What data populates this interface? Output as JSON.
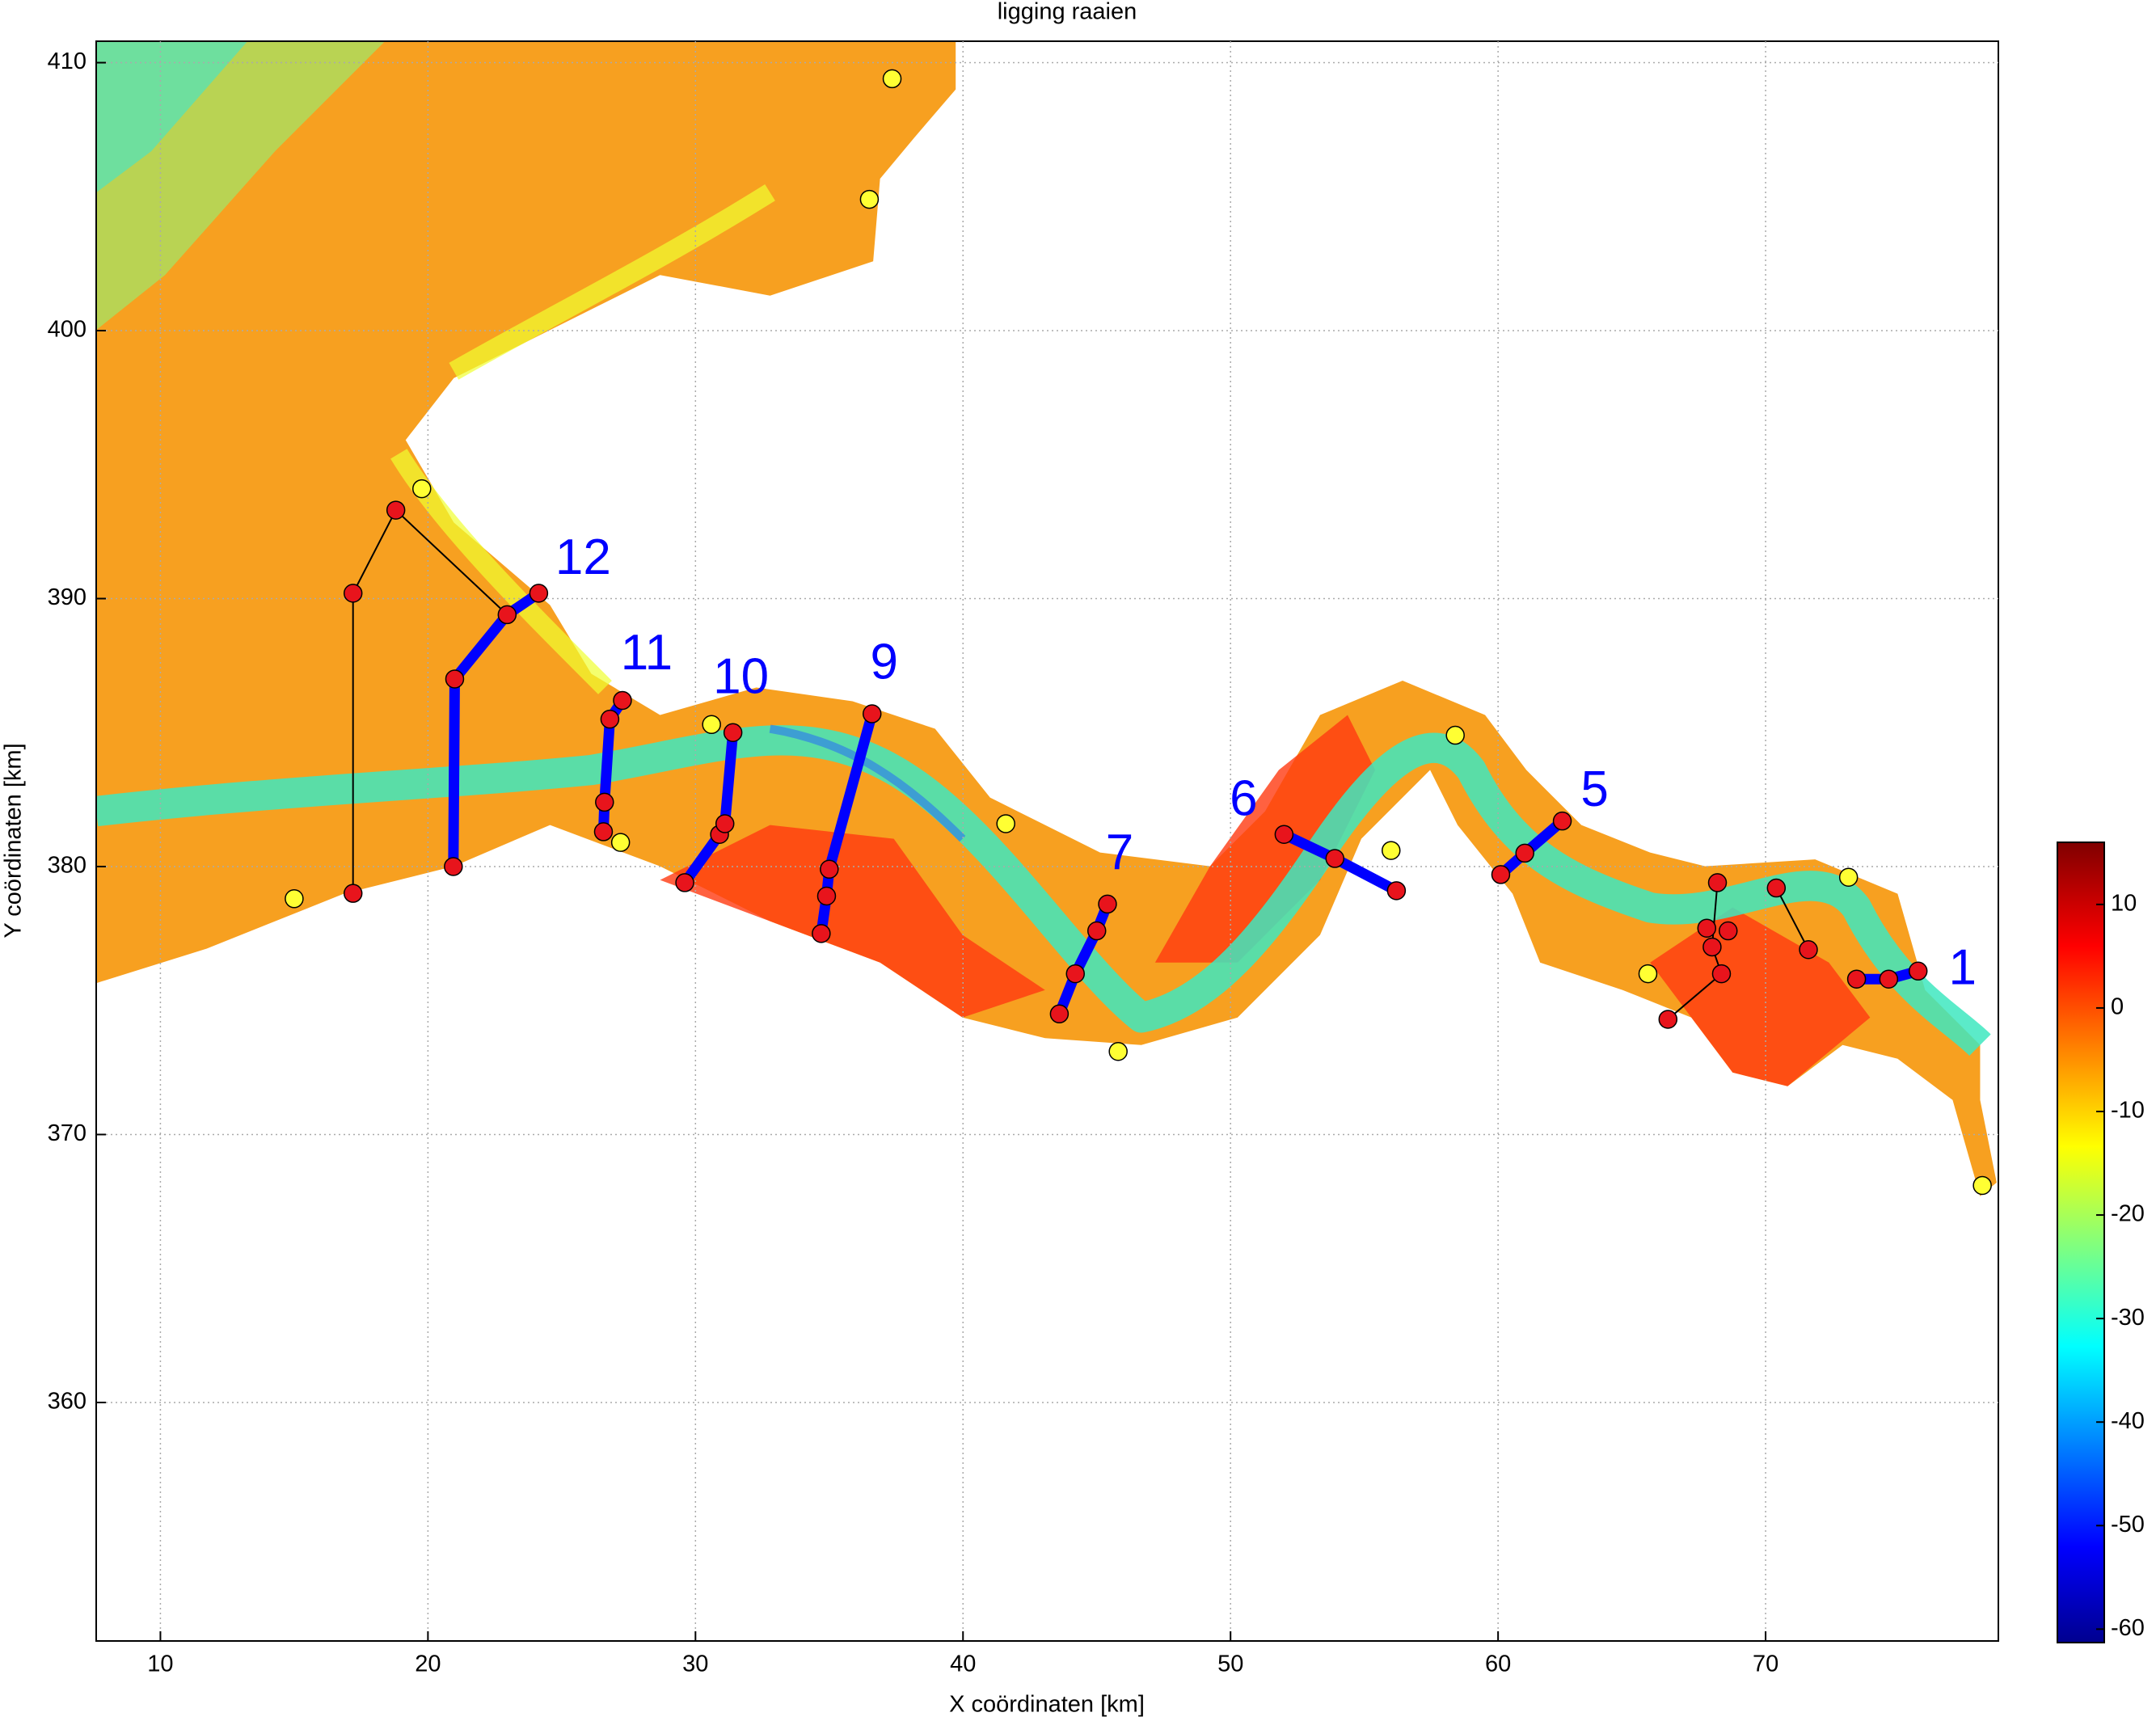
{
  "chart_data": {
    "type": "scatter",
    "title": "ligging raaien",
    "x_label": "X coördinaten [km]",
    "y_label": "Y coördinaten [km]",
    "xlim": [
      7.6,
      78.7
    ],
    "ylim": [
      351.1,
      410.8
    ],
    "xticks": [
      10,
      20,
      30,
      40,
      50,
      60,
      70
    ],
    "yticks": [
      360,
      370,
      380,
      390,
      400,
      410
    ],
    "grid": true,
    "series": [
      {
        "name": "12",
        "color": "#0000ff",
        "x": [
          20.95,
          21.0,
          22.96,
          24.14
        ],
        "y": [
          380.0,
          387.0,
          389.4,
          390.2
        ]
      },
      {
        "name": "11",
        "color": "#0000ff",
        "x": [
          26.56,
          26.6,
          26.8,
          27.27
        ],
        "y": [
          381.3,
          382.4,
          385.5,
          386.2
        ]
      },
      {
        "name": "10",
        "color": "#0000ff",
        "x": [
          29.6,
          30.9,
          31.1,
          31.4
        ],
        "y": [
          379.4,
          381.2,
          381.6,
          385.0
        ]
      },
      {
        "name": "9",
        "color": "#0000ff",
        "x": [
          34.7,
          34.9,
          35.0,
          36.6
        ],
        "y": [
          377.5,
          378.9,
          379.9,
          385.7
        ]
      },
      {
        "name": "7",
        "color": "#0000ff",
        "x": [
          43.6,
          44.2,
          45.0,
          45.4
        ],
        "y": [
          374.5,
          376.0,
          377.6,
          378.6
        ]
      },
      {
        "name": "6",
        "color": "#0000ff",
        "x": [
          52.0,
          53.9,
          56.2
        ],
        "y": [
          381.2,
          380.3,
          379.1
        ]
      },
      {
        "name": "5",
        "color": "#0000ff",
        "x": [
          60.1,
          61.0,
          62.4
        ],
        "y": [
          379.7,
          380.5,
          381.7
        ]
      },
      {
        "name": "1",
        "color": "#0000ff",
        "x": [
          73.4,
          74.6,
          75.7
        ],
        "y": [
          375.8,
          375.8,
          376.1
        ]
      }
    ],
    "links": [
      {
        "color": "#000000",
        "x": [
          17.2,
          17.2,
          18.8,
          22.96
        ],
        "y": [
          379.0,
          390.2,
          393.3,
          389.4
        ]
      },
      {
        "color": "#000000",
        "x": [
          66.35,
          68.35,
          68.0,
          68.2
        ],
        "y": [
          374.3,
          376.0,
          377.0,
          379.4
        ]
      },
      {
        "color": "#000000",
        "x": [
          70.4,
          71.6
        ],
        "y": [
          379.2,
          376.9
        ]
      }
    ],
    "red_points": {
      "color": "#e8141c",
      "x": [
        17.2,
        17.2,
        18.8,
        66.35,
        68.35,
        68.0,
        68.2,
        67.8,
        68.6,
        70.4,
        71.6
      ],
      "y": [
        379.0,
        390.2,
        393.3,
        374.3,
        376.0,
        377.0,
        379.4,
        377.7,
        377.6,
        379.2,
        376.9
      ]
    },
    "yellow_points": {
      "color": "#ffff33",
      "x": [
        37.35,
        36.5,
        19.77,
        15.0,
        27.2,
        30.6,
        41.6,
        45.8,
        56.0,
        58.4,
        65.6,
        73.1,
        78.1
      ],
      "y": [
        409.4,
        404.9,
        394.1,
        378.8,
        380.9,
        385.3,
        381.6,
        373.1,
        380.6,
        384.9,
        376.0,
        379.6,
        368.1
      ]
    },
    "colorbar": {
      "clim": [
        -61.3,
        16.0
      ],
      "ticks": [
        10,
        0,
        -10,
        -20,
        -30,
        -40,
        -50,
        -60
      ]
    }
  }
}
